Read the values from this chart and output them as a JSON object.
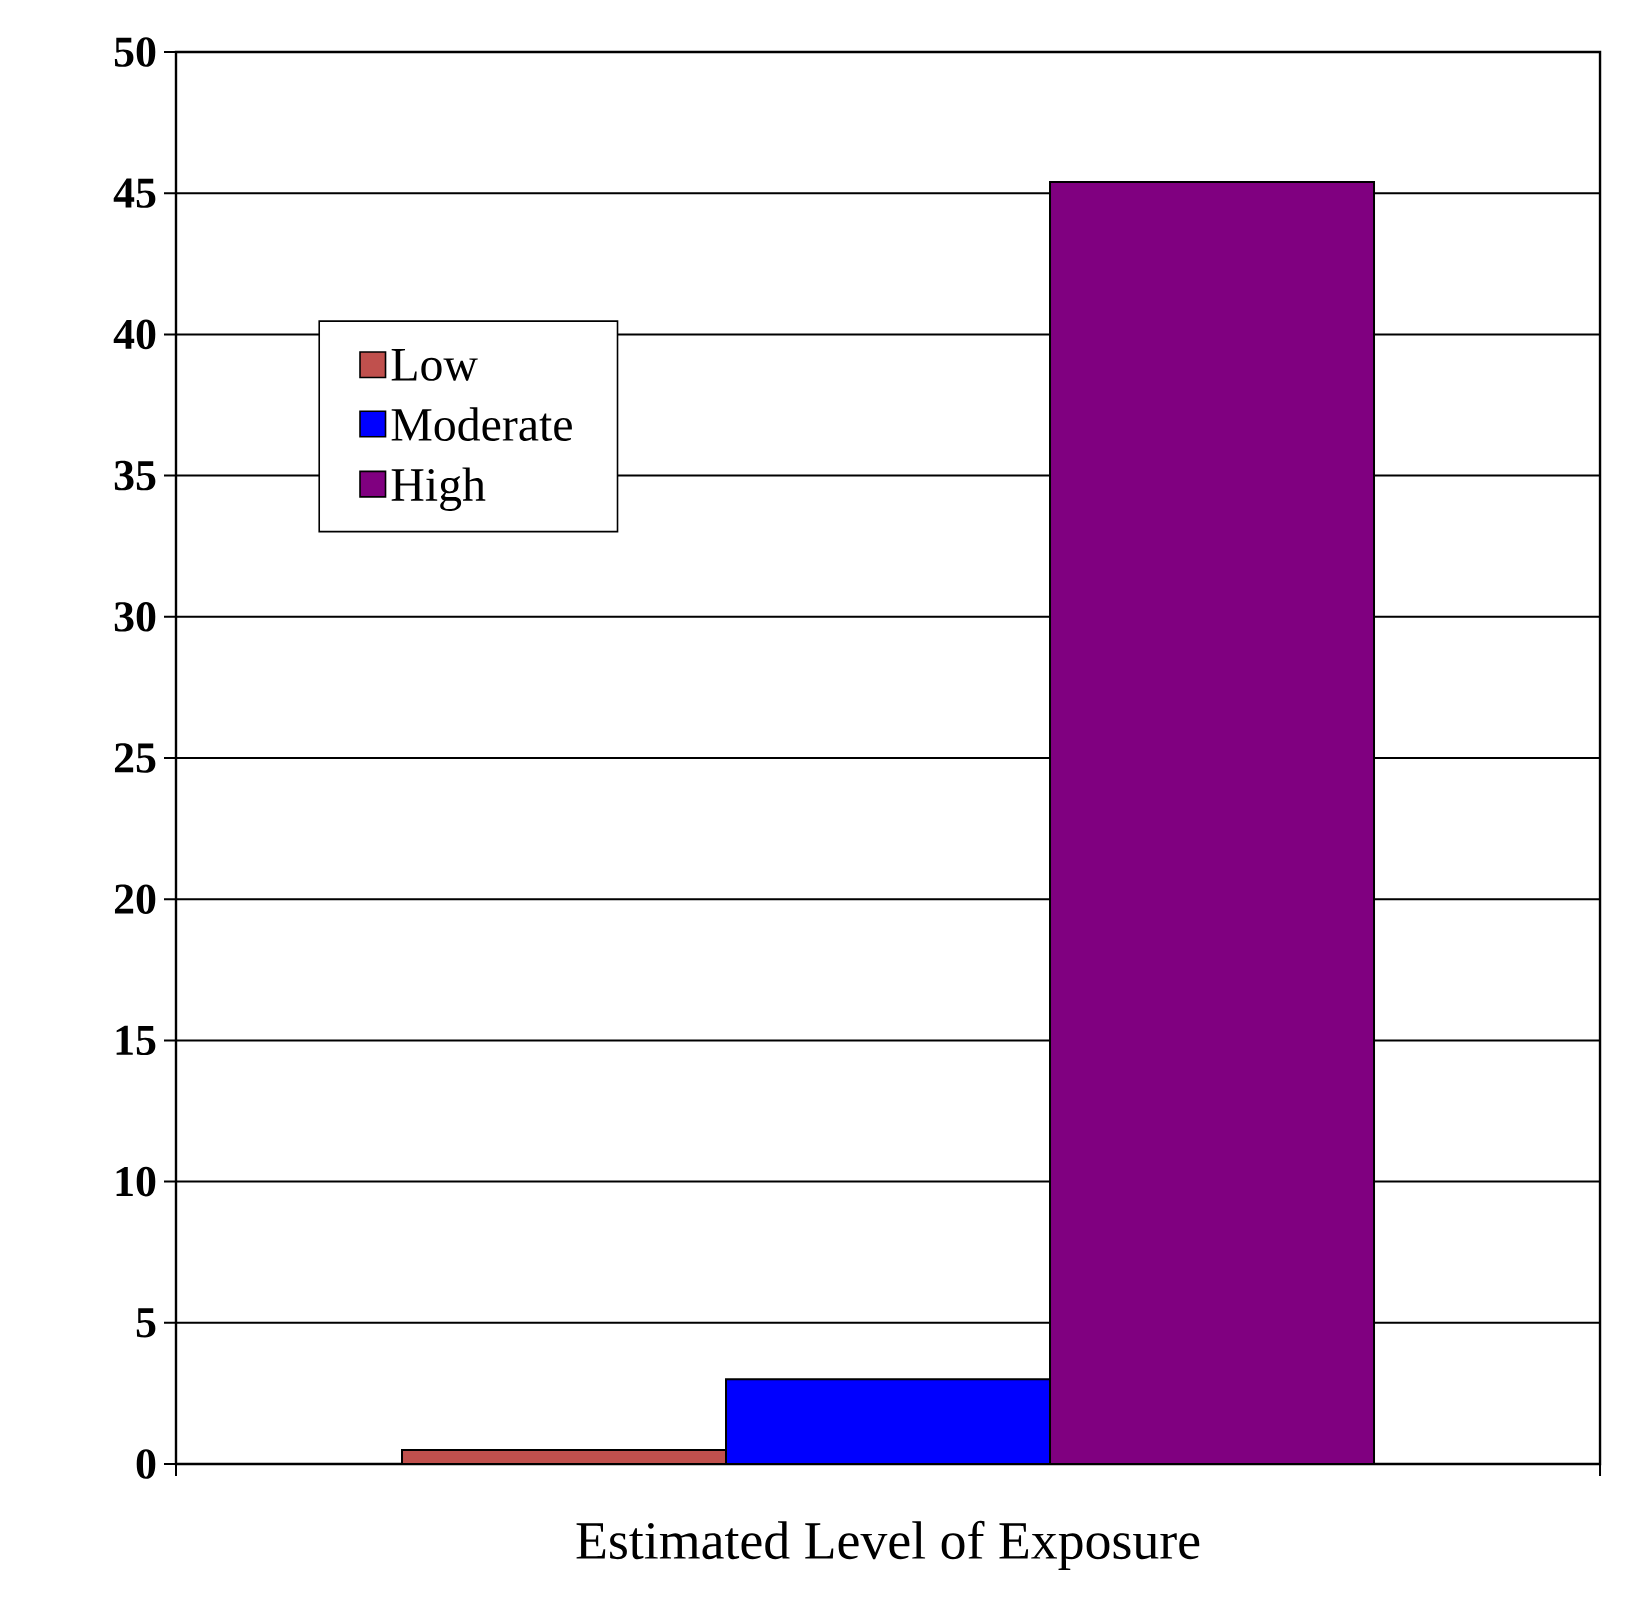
{
  "chart_data": {
    "type": "bar",
    "xlabel": "Estimated Level of Exposure",
    "categories": [
      null
    ],
    "series": [
      {
        "name": "Low",
        "color": "#c0504d",
        "values": [
          0.5
        ]
      },
      {
        "name": "Moderate",
        "color": "#0000ff",
        "values": [
          3
        ]
      },
      {
        "name": "High",
        "color": "#800080",
        "values": [
          45.4
        ]
      }
    ],
    "ylim": [
      0,
      50
    ],
    "yticks": [
      0,
      5,
      10,
      15,
      20,
      25,
      30,
      35,
      40,
      45,
      50
    ],
    "grid": "y",
    "legend": "top left"
  }
}
